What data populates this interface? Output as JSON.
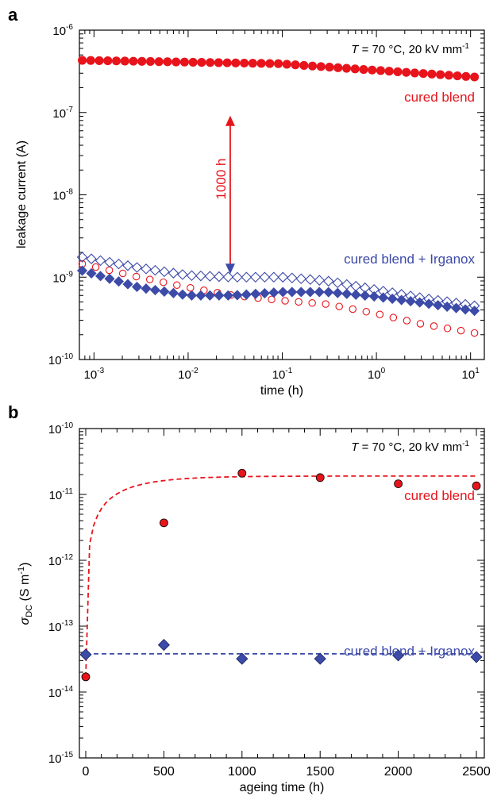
{
  "chart_data": [
    {
      "panel": "a",
      "type": "scatter",
      "xlabel": "time (h)",
      "ylabel": "leakage current (A)",
      "x_scale": "log",
      "y_scale": "log",
      "xlim": [
        0.0007,
        14
      ],
      "ylim": [
        1e-10,
        1e-06
      ],
      "x_ticks": [
        {
          "base": "10",
          "exp": "-3",
          "value": 0.001
        },
        {
          "base": "10",
          "exp": "-2",
          "value": 0.01
        },
        {
          "base": "10",
          "exp": "-1",
          "value": 0.1
        },
        {
          "base": "10",
          "exp": "0",
          "value": 1
        },
        {
          "base": "10",
          "exp": "1",
          "value": 10
        }
      ],
      "y_ticks": [
        {
          "base": "10",
          "exp": "-10",
          "value": 1e-10
        },
        {
          "base": "10",
          "exp": "-9",
          "value": 1e-09
        },
        {
          "base": "10",
          "exp": "-8",
          "value": 1e-08
        },
        {
          "base": "10",
          "exp": "-7",
          "value": 1e-07
        },
        {
          "base": "10",
          "exp": "-6",
          "value": 1e-06
        }
      ],
      "condition": {
        "T": "T",
        "rest": " = 70 °C, 20 kV mm",
        "sup": "-1"
      },
      "labels": [
        {
          "text": "cured blend",
          "color": "#e8141c"
        },
        {
          "text": "cured blend + Irganox",
          "color": "#3c4aa8"
        }
      ],
      "annotation": {
        "text": "1000 h",
        "x": 0.028,
        "y_from": 1e-09,
        "y_to": 1e-07,
        "color": "#e8141c"
      },
      "series": [
        {
          "marker": "circle-filled",
          "color": "#e8141c",
          "x_range": [
            0.00075,
            11
          ],
          "y_range": [
            4.3e-07,
            2.7e-07
          ],
          "n": 47
        },
        {
          "marker": "circle-open",
          "color": "#e8141c",
          "x_range": [
            0.00075,
            11
          ],
          "curve": [
            [
              0.00075,
              1.45e-09
            ],
            [
              0.003,
              1e-09
            ],
            [
              0.01,
              7.5e-10
            ],
            [
              0.03,
              6e-10
            ],
            [
              0.1,
              5.2e-10
            ],
            [
              0.3,
              4.7e-10
            ],
            [
              1,
              3.6e-10
            ],
            [
              3,
              2.7e-10
            ],
            [
              11,
              2.1e-10
            ]
          ],
          "n": 30
        },
        {
          "marker": "diamond-filled",
          "color": "#3c4aa8",
          "x_range": [
            0.00075,
            11
          ],
          "curve": [
            [
              0.00075,
              1.2e-09
            ],
            [
              0.003,
              7.5e-10
            ],
            [
              0.01,
              6e-10
            ],
            [
              0.03,
              6e-10
            ],
            [
              0.1,
              6.6e-10
            ],
            [
              0.3,
              6.6e-10
            ],
            [
              1,
              5.8e-10
            ],
            [
              3,
              4.9e-10
            ],
            [
              11,
              3.9e-10
            ]
          ],
          "n": 44
        },
        {
          "marker": "diamond-open",
          "color": "#3c4aa8",
          "x_range": [
            0.00075,
            11
          ],
          "curve": [
            [
              0.00075,
              1.75e-09
            ],
            [
              0.003,
              1.3e-09
            ],
            [
              0.01,
              1.05e-09
            ],
            [
              0.03,
              1e-09
            ],
            [
              0.1,
              1e-09
            ],
            [
              0.3,
              9e-10
            ],
            [
              1,
              7e-10
            ],
            [
              3,
              5.6e-10
            ],
            [
              11,
              4.5e-10
            ]
          ],
          "n": 44
        }
      ]
    },
    {
      "panel": "b",
      "type": "scatter",
      "xlabel": "ageing time (h)",
      "ylabel_symbol": "σ",
      "ylabel_sub": "DC",
      "ylabel_unit": " (S m",
      "ylabel_sup": "-1",
      "ylabel_close": ")",
      "x_scale": "linear",
      "y_scale": "log",
      "xlim": [
        0,
        2500
      ],
      "ylim": [
        1e-15,
        1e-10
      ],
      "x_ticks": [
        {
          "label": "0",
          "value": 0
        },
        {
          "label": "500",
          "value": 500
        },
        {
          "label": "1000",
          "value": 1000
        },
        {
          "label": "1500",
          "value": 1500
        },
        {
          "label": "2000",
          "value": 2000
        },
        {
          "label": "2500",
          "value": 2500
        }
      ],
      "y_ticks": [
        {
          "base": "10",
          "exp": "-15",
          "value": 1e-15
        },
        {
          "base": "10",
          "exp": "-14",
          "value": 1e-14
        },
        {
          "base": "10",
          "exp": "-13",
          "value": 1e-13
        },
        {
          "base": "10",
          "exp": "-12",
          "value": 1e-12
        },
        {
          "base": "10",
          "exp": "-11",
          "value": 1e-11
        },
        {
          "base": "10",
          "exp": "-10",
          "value": 1e-10
        }
      ],
      "condition": {
        "T": "T",
        "rest": " = 70 °C, 20 kV mm",
        "sup": "-1"
      },
      "labels": [
        {
          "text": "cured blend",
          "color": "#e8141c"
        },
        {
          "text": "cured blend + Irganox",
          "color": "#3c4aa8"
        }
      ],
      "series": [
        {
          "name": "cured blend",
          "marker": "circle",
          "color": "#e8141c",
          "x": [
            0,
            500,
            1000,
            1500,
            2000,
            2500
          ],
          "y": [
            1.7e-14,
            3.7e-12,
            2.1e-11,
            1.8e-11,
            1.45e-11,
            1.35e-11
          ]
        },
        {
          "name": "cured blend + Irganox",
          "marker": "diamond",
          "color": "#3c4aa8",
          "x": [
            0,
            500,
            1000,
            1500,
            2000,
            2500
          ],
          "y": [
            3.7e-14,
            5.2e-14,
            3.2e-14,
            3.2e-14,
            3.6e-14,
            3.4e-14
          ]
        }
      ],
      "fits": [
        {
          "color": "#e8141c",
          "form": "exp-saturation",
          "y0": 1.7e-14,
          "yinf": 1.9e-11,
          "tau": 260
        },
        {
          "color": "#3c4aa8",
          "form": "constant",
          "y": 3.8e-14
        }
      ]
    }
  ]
}
